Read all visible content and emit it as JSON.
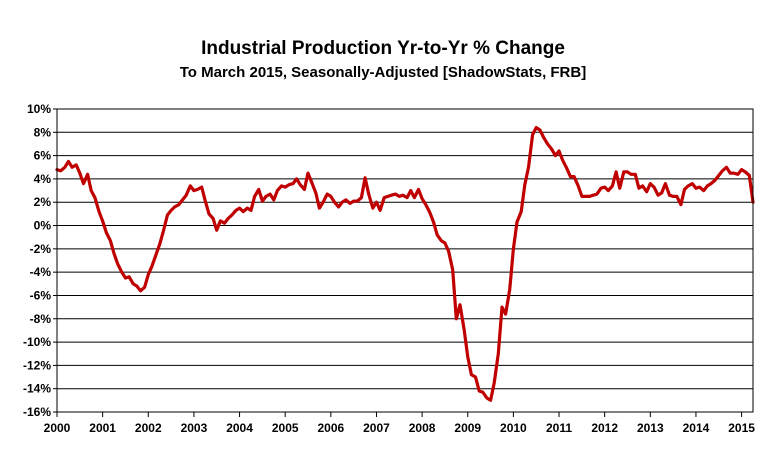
{
  "chart_data": {
    "type": "line",
    "title": "Industrial Production Yr-to-Yr %  Change",
    "subtitle": "To March 2015, Seasonally-Adjusted [ShadowStats, FRB]",
    "xlabel": "",
    "ylabel": "",
    "xlim": [
      2000.0,
      2015.25
    ],
    "ylim": [
      -16,
      10
    ],
    "y_ticks": [
      "10%",
      "8%",
      "6%",
      "4%",
      "2%",
      "0%",
      "-2%",
      "-4%",
      "-6%",
      "-8%",
      "-10%",
      "-12%",
      "-14%",
      "-16%"
    ],
    "x_ticks": [
      "2000",
      "2001",
      "2002",
      "2003",
      "2004",
      "2005",
      "2006",
      "2007",
      "2008",
      "2009",
      "2010",
      "2011",
      "2012",
      "2013",
      "2014",
      "2015"
    ],
    "grid": true,
    "line_color": "#c00000",
    "series": [
      {
        "points": [
          [
            2000.0,
            4.8
          ],
          [
            2000.08,
            4.7
          ],
          [
            2000.17,
            5.0
          ],
          [
            2000.25,
            5.5
          ],
          [
            2000.33,
            5.0
          ],
          [
            2000.42,
            5.2
          ],
          [
            2000.5,
            4.5
          ],
          [
            2000.58,
            3.6
          ],
          [
            2000.67,
            4.4
          ],
          [
            2000.75,
            3.0
          ],
          [
            2000.83,
            2.4
          ],
          [
            2000.92,
            1.2
          ],
          [
            2001.0,
            0.4
          ],
          [
            2001.08,
            -0.6
          ],
          [
            2001.17,
            -1.3
          ],
          [
            2001.25,
            -2.4
          ],
          [
            2001.33,
            -3.3
          ],
          [
            2001.42,
            -4.0
          ],
          [
            2001.5,
            -4.5
          ],
          [
            2001.58,
            -4.4
          ],
          [
            2001.67,
            -5.0
          ],
          [
            2001.75,
            -5.2
          ],
          [
            2001.83,
            -5.6
          ],
          [
            2001.92,
            -5.3
          ],
          [
            2002.0,
            -4.2
          ],
          [
            2002.08,
            -3.5
          ],
          [
            2002.17,
            -2.5
          ],
          [
            2002.25,
            -1.6
          ],
          [
            2002.33,
            -0.5
          ],
          [
            2002.42,
            0.9
          ],
          [
            2002.5,
            1.3
          ],
          [
            2002.58,
            1.6
          ],
          [
            2002.67,
            1.8
          ],
          [
            2002.75,
            2.2
          ],
          [
            2002.83,
            2.6
          ],
          [
            2002.92,
            3.4
          ],
          [
            2003.0,
            3.0
          ],
          [
            2003.08,
            3.1
          ],
          [
            2003.17,
            3.3
          ],
          [
            2003.25,
            2.1
          ],
          [
            2003.33,
            1.0
          ],
          [
            2003.42,
            0.6
          ],
          [
            2003.5,
            -0.4
          ],
          [
            2003.58,
            0.4
          ],
          [
            2003.67,
            0.2
          ],
          [
            2003.75,
            0.6
          ],
          [
            2003.83,
            0.9
          ],
          [
            2003.92,
            1.3
          ],
          [
            2004.0,
            1.5
          ],
          [
            2004.08,
            1.2
          ],
          [
            2004.17,
            1.5
          ],
          [
            2004.25,
            1.3
          ],
          [
            2004.33,
            2.5
          ],
          [
            2004.42,
            3.1
          ],
          [
            2004.5,
            2.1
          ],
          [
            2004.58,
            2.5
          ],
          [
            2004.67,
            2.7
          ],
          [
            2004.75,
            2.2
          ],
          [
            2004.83,
            3.0
          ],
          [
            2004.92,
            3.4
          ],
          [
            2005.0,
            3.3
          ],
          [
            2005.08,
            3.5
          ],
          [
            2005.17,
            3.6
          ],
          [
            2005.25,
            4.0
          ],
          [
            2005.33,
            3.5
          ],
          [
            2005.42,
            3.1
          ],
          [
            2005.5,
            4.5
          ],
          [
            2005.58,
            3.7
          ],
          [
            2005.67,
            2.8
          ],
          [
            2005.75,
            1.5
          ],
          [
            2005.83,
            2.0
          ],
          [
            2005.92,
            2.7
          ],
          [
            2006.0,
            2.5
          ],
          [
            2006.08,
            2.0
          ],
          [
            2006.17,
            1.6
          ],
          [
            2006.25,
            2.0
          ],
          [
            2006.33,
            2.2
          ],
          [
            2006.42,
            1.9
          ],
          [
            2006.5,
            2.1
          ],
          [
            2006.58,
            2.1
          ],
          [
            2006.67,
            2.4
          ],
          [
            2006.75,
            4.1
          ],
          [
            2006.83,
            2.7
          ],
          [
            2006.92,
            1.5
          ],
          [
            2007.0,
            2.0
          ],
          [
            2007.08,
            1.3
          ],
          [
            2007.17,
            2.4
          ],
          [
            2007.25,
            2.5
          ],
          [
            2007.33,
            2.6
          ],
          [
            2007.42,
            2.7
          ],
          [
            2007.5,
            2.5
          ],
          [
            2007.58,
            2.6
          ],
          [
            2007.67,
            2.4
          ],
          [
            2007.75,
            3.0
          ],
          [
            2007.83,
            2.4
          ],
          [
            2007.92,
            3.1
          ],
          [
            2008.0,
            2.3
          ],
          [
            2008.08,
            1.8
          ],
          [
            2008.17,
            1.1
          ],
          [
            2008.25,
            0.3
          ],
          [
            2008.33,
            -0.8
          ],
          [
            2008.42,
            -1.3
          ],
          [
            2008.5,
            -1.5
          ],
          [
            2008.58,
            -2.2
          ],
          [
            2008.67,
            -3.8
          ],
          [
            2008.75,
            -8.0
          ],
          [
            2008.83,
            -6.8
          ],
          [
            2008.92,
            -8.9
          ],
          [
            2009.0,
            -11.3
          ],
          [
            2009.08,
            -12.8
          ],
          [
            2009.17,
            -13.0
          ],
          [
            2009.25,
            -14.2
          ],
          [
            2009.33,
            -14.3
          ],
          [
            2009.42,
            -14.8
          ],
          [
            2009.5,
            -15.0
          ],
          [
            2009.58,
            -13.5
          ],
          [
            2009.67,
            -11.0
          ],
          [
            2009.75,
            -7.0
          ],
          [
            2009.83,
            -7.6
          ],
          [
            2009.92,
            -5.5
          ],
          [
            2010.0,
            -2.0
          ],
          [
            2010.08,
            0.3
          ],
          [
            2010.17,
            1.2
          ],
          [
            2010.25,
            3.5
          ],
          [
            2010.33,
            5.0
          ],
          [
            2010.42,
            7.8
          ],
          [
            2010.5,
            8.4
          ],
          [
            2010.58,
            8.2
          ],
          [
            2010.67,
            7.5
          ],
          [
            2010.75,
            7.0
          ],
          [
            2010.83,
            6.6
          ],
          [
            2010.92,
            6.0
          ],
          [
            2011.0,
            6.4
          ],
          [
            2011.08,
            5.6
          ],
          [
            2011.17,
            4.9
          ],
          [
            2011.25,
            4.2
          ],
          [
            2011.33,
            4.2
          ],
          [
            2011.42,
            3.4
          ],
          [
            2011.5,
            2.5
          ],
          [
            2011.58,
            2.5
          ],
          [
            2011.67,
            2.5
          ],
          [
            2011.75,
            2.6
          ],
          [
            2011.83,
            2.7
          ],
          [
            2011.92,
            3.2
          ],
          [
            2012.0,
            3.3
          ],
          [
            2012.08,
            3.0
          ],
          [
            2012.17,
            3.4
          ],
          [
            2012.25,
            4.6
          ],
          [
            2012.33,
            3.2
          ],
          [
            2012.42,
            4.6
          ],
          [
            2012.5,
            4.6
          ],
          [
            2012.58,
            4.4
          ],
          [
            2012.67,
            4.4
          ],
          [
            2012.75,
            3.2
          ],
          [
            2012.83,
            3.4
          ],
          [
            2012.92,
            2.9
          ],
          [
            2013.0,
            3.6
          ],
          [
            2013.08,
            3.3
          ],
          [
            2013.17,
            2.6
          ],
          [
            2013.25,
            2.8
          ],
          [
            2013.33,
            3.6
          ],
          [
            2013.42,
            2.6
          ],
          [
            2013.5,
            2.5
          ],
          [
            2013.58,
            2.5
          ],
          [
            2013.67,
            1.8
          ],
          [
            2013.75,
            3.1
          ],
          [
            2013.83,
            3.4
          ],
          [
            2013.92,
            3.6
          ],
          [
            2014.0,
            3.2
          ],
          [
            2014.08,
            3.3
          ],
          [
            2014.17,
            3.0
          ],
          [
            2014.25,
            3.4
          ],
          [
            2014.33,
            3.6
          ],
          [
            2014.42,
            3.9
          ],
          [
            2014.5,
            4.3
          ],
          [
            2014.58,
            4.7
          ],
          [
            2014.67,
            5.0
          ],
          [
            2014.75,
            4.5
          ],
          [
            2014.83,
            4.5
          ],
          [
            2014.92,
            4.4
          ],
          [
            2015.0,
            4.8
          ],
          [
            2015.08,
            4.6
          ],
          [
            2015.17,
            4.3
          ],
          [
            2015.25,
            2.0
          ]
        ]
      }
    ]
  }
}
